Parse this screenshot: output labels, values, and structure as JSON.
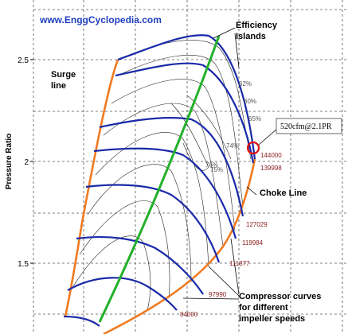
{
  "website": "www.EnggCyclopedia.com",
  "y_axis": {
    "label": "Pressure Ratio",
    "ticks": [
      2.5,
      2,
      1.5
    ]
  },
  "annotations": {
    "efficiency": [
      "Efficiency",
      "Islands"
    ],
    "surge": [
      "Surge",
      "line"
    ],
    "choke": "Choke Line",
    "compressor": [
      "Compressor curves",
      "for different",
      "impeller speeds"
    ],
    "point": "520cfm@2.1PR"
  },
  "efficiency_labels": [
    "62%",
    "60%",
    "65%",
    "74%",
    "76%",
    "75%"
  ],
  "speed_labels": [
    "144000",
    "139998",
    "127029",
    "119984",
    "111877",
    "97990",
    "84000"
  ]
}
